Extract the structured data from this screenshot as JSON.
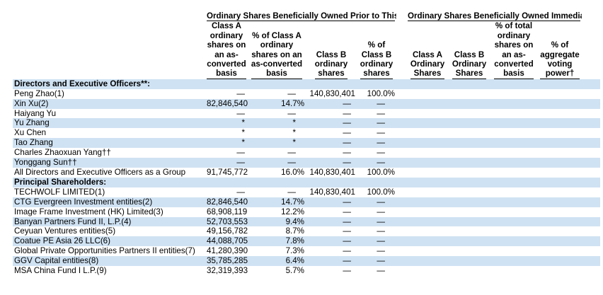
{
  "header": {
    "group_prior": "Ordinary Shares Beneficially Owned Prior to This Offering",
    "group_after": "Ordinary Shares Beneficially Owned Immediately After This Offering",
    "col_a_shares": [
      "Class A",
      "ordinary",
      "shares on",
      "an as-",
      "converted",
      "basis"
    ],
    "col_a_pct": [
      "% of Class A",
      "ordinary",
      "shares on an",
      "as-converted",
      "basis"
    ],
    "col_b_shares": [
      "Class B",
      "ordinary",
      "shares"
    ],
    "col_b_pct": [
      "% of",
      "Class B",
      "ordinary",
      "shares"
    ],
    "col_after_a": [
      "Class A",
      "Ordinary",
      "Shares"
    ],
    "col_after_b": [
      "Class B",
      "Ordinary",
      "Shares"
    ],
    "col_after_total": [
      "% of total",
      "ordinary",
      "shares on",
      "an as-",
      "converted",
      "basis"
    ],
    "col_after_vote": [
      "% of",
      "aggregate",
      "voting",
      "power†"
    ]
  },
  "sections": {
    "directors": "Directors and Executive Officers**:",
    "principal": "Principal Shareholders:"
  },
  "directors": [
    {
      "name": "Peng Zhao(1)",
      "a": "—",
      "a_pct": "—",
      "b": "140,830,401",
      "b_pct": "100.0%"
    },
    {
      "name": "Xin Xu(2)",
      "a": "82,846,540",
      "a_pct": "14.7%",
      "b": "—",
      "b_pct": "—"
    },
    {
      "name": "Haiyang Yu",
      "a": "—",
      "a_pct": "—",
      "b": "—",
      "b_pct": "—"
    },
    {
      "name": "Yu Zhang",
      "a": "*",
      "a_pct": "*",
      "b": "—",
      "b_pct": "—"
    },
    {
      "name": "Xu Chen",
      "a": "*",
      "a_pct": "*",
      "b": "—",
      "b_pct": "—"
    },
    {
      "name": "Tao Zhang",
      "a": "*",
      "a_pct": "*",
      "b": "—",
      "b_pct": "—"
    },
    {
      "name": "Charles Zhaoxuan Yang††",
      "a": "—",
      "a_pct": "—",
      "b": "—",
      "b_pct": "—"
    },
    {
      "name": "Yonggang Sun††",
      "a": "—",
      "a_pct": "—",
      "b": "—",
      "b_pct": "—"
    },
    {
      "name": "All Directors and Executive Officers as a Group",
      "a": "91,745,772",
      "a_pct": "16.0%",
      "b": "140,830,401",
      "b_pct": "100.0%"
    }
  ],
  "principal": [
    {
      "name": "TECHWOLF LIMITED(1)",
      "a": "—",
      "a_pct": "—",
      "b": "140,830,401",
      "b_pct": "100.0%"
    },
    {
      "name": "CTG Evergreen Investment entities(2)",
      "a": "82,846,540",
      "a_pct": "14.7%",
      "b": "—",
      "b_pct": "—"
    },
    {
      "name": "Image Frame Investment (HK) Limited(3)",
      "a": "68,908,119",
      "a_pct": "12.2%",
      "b": "—",
      "b_pct": "—"
    },
    {
      "name": "Banyan Partners Fund II, L.P.(4)",
      "a": "52,703,553",
      "a_pct": "9.4%",
      "b": "—",
      "b_pct": "—"
    },
    {
      "name": "Ceyuan Ventures entities(5)",
      "a": "49,156,782",
      "a_pct": "8.7%",
      "b": "—",
      "b_pct": "—"
    },
    {
      "name": "Coatue PE Asia 26 LLC(6)",
      "a": "44,088,705",
      "a_pct": "7.8%",
      "b": "—",
      "b_pct": "—"
    },
    {
      "name": "Global Private Opportunities Partners II entities(7)",
      "a": "41,280,390",
      "a_pct": "7.3%",
      "b": "—",
      "b_pct": "—"
    },
    {
      "name": "GGV Capital entities(8)",
      "a": "35,785,285",
      "a_pct": "6.4%",
      "b": "—",
      "b_pct": "—"
    },
    {
      "name": "MSA China Fund I L.P.(9)",
      "a": "32,319,393",
      "a_pct": "5.7%",
      "b": "—",
      "b_pct": "—"
    }
  ]
}
